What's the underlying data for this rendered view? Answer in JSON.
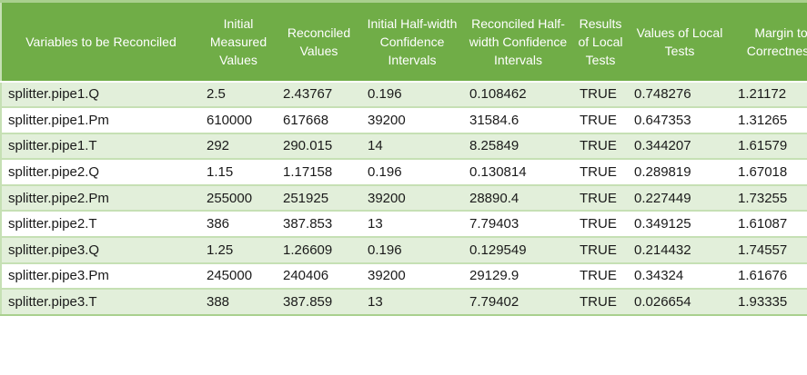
{
  "colors": {
    "header_bg": "#70AD47",
    "header_text": "#FFFFFF",
    "band_row_bg": "#E2EFDA",
    "plain_row_bg": "#FFFFFF",
    "row_border": "#C6E0B4",
    "outer_border": "#A9D08E",
    "data_text": "#1A1A1A"
  },
  "chart_data": {
    "type": "table",
    "legend_position": "none",
    "grid": "banded-rows",
    "columns": [
      {
        "id": "variable",
        "label": "Variables to be Reconciled"
      },
      {
        "id": "initial_measured",
        "label": "Initial Measured Values"
      },
      {
        "id": "reconciled",
        "label": "Reconciled Values"
      },
      {
        "id": "initial_halfwidth",
        "label": "Initial Half-width Confidence Intervals"
      },
      {
        "id": "reconciled_halfwidth",
        "label": "Reconciled Half-width Confidence Intervals"
      },
      {
        "id": "local_test_result",
        "label": "Results of Local Tests"
      },
      {
        "id": "local_test_value",
        "label": "Values of Local Tests"
      },
      {
        "id": "margin_correctness",
        "label": "Margin to Correctness"
      }
    ],
    "rows": [
      {
        "cells": [
          "splitter.pipe1.Q",
          "2.5",
          "2.43767",
          "0.196",
          "0.108462",
          "TRUE",
          "0.748276",
          "1.21172"
        ]
      },
      {
        "cells": [
          "splitter.pipe1.Pm",
          "610000",
          "617668",
          "39200",
          "31584.6",
          "TRUE",
          "0.647353",
          "1.31265"
        ]
      },
      {
        "cells": [
          "splitter.pipe1.T",
          "292",
          "290.015",
          "14",
          "8.25849",
          "TRUE",
          "0.344207",
          "1.61579"
        ]
      },
      {
        "cells": [
          "splitter.pipe2.Q",
          "1.15",
          "1.17158",
          "0.196",
          "0.130814",
          "TRUE",
          "0.289819",
          "1.67018"
        ]
      },
      {
        "cells": [
          "splitter.pipe2.Pm",
          "255000",
          "251925",
          "39200",
          "28890.4",
          "TRUE",
          "0.227449",
          "1.73255"
        ]
      },
      {
        "cells": [
          "splitter.pipe2.T",
          "386",
          "387.853",
          "13",
          "7.79403",
          "TRUE",
          "0.349125",
          "1.61087"
        ]
      },
      {
        "cells": [
          "splitter.pipe3.Q",
          "1.25",
          "1.26609",
          "0.196",
          "0.129549",
          "TRUE",
          "0.214432",
          "1.74557"
        ]
      },
      {
        "cells": [
          "splitter.pipe3.Pm",
          "245000",
          "240406",
          "39200",
          "29129.9",
          "TRUE",
          "0.34324",
          "1.61676"
        ]
      },
      {
        "cells": [
          "splitter.pipe3.T",
          "388",
          "387.859",
          "13",
          "7.79402",
          "TRUE",
          "0.026654",
          "1.93335"
        ]
      }
    ]
  }
}
